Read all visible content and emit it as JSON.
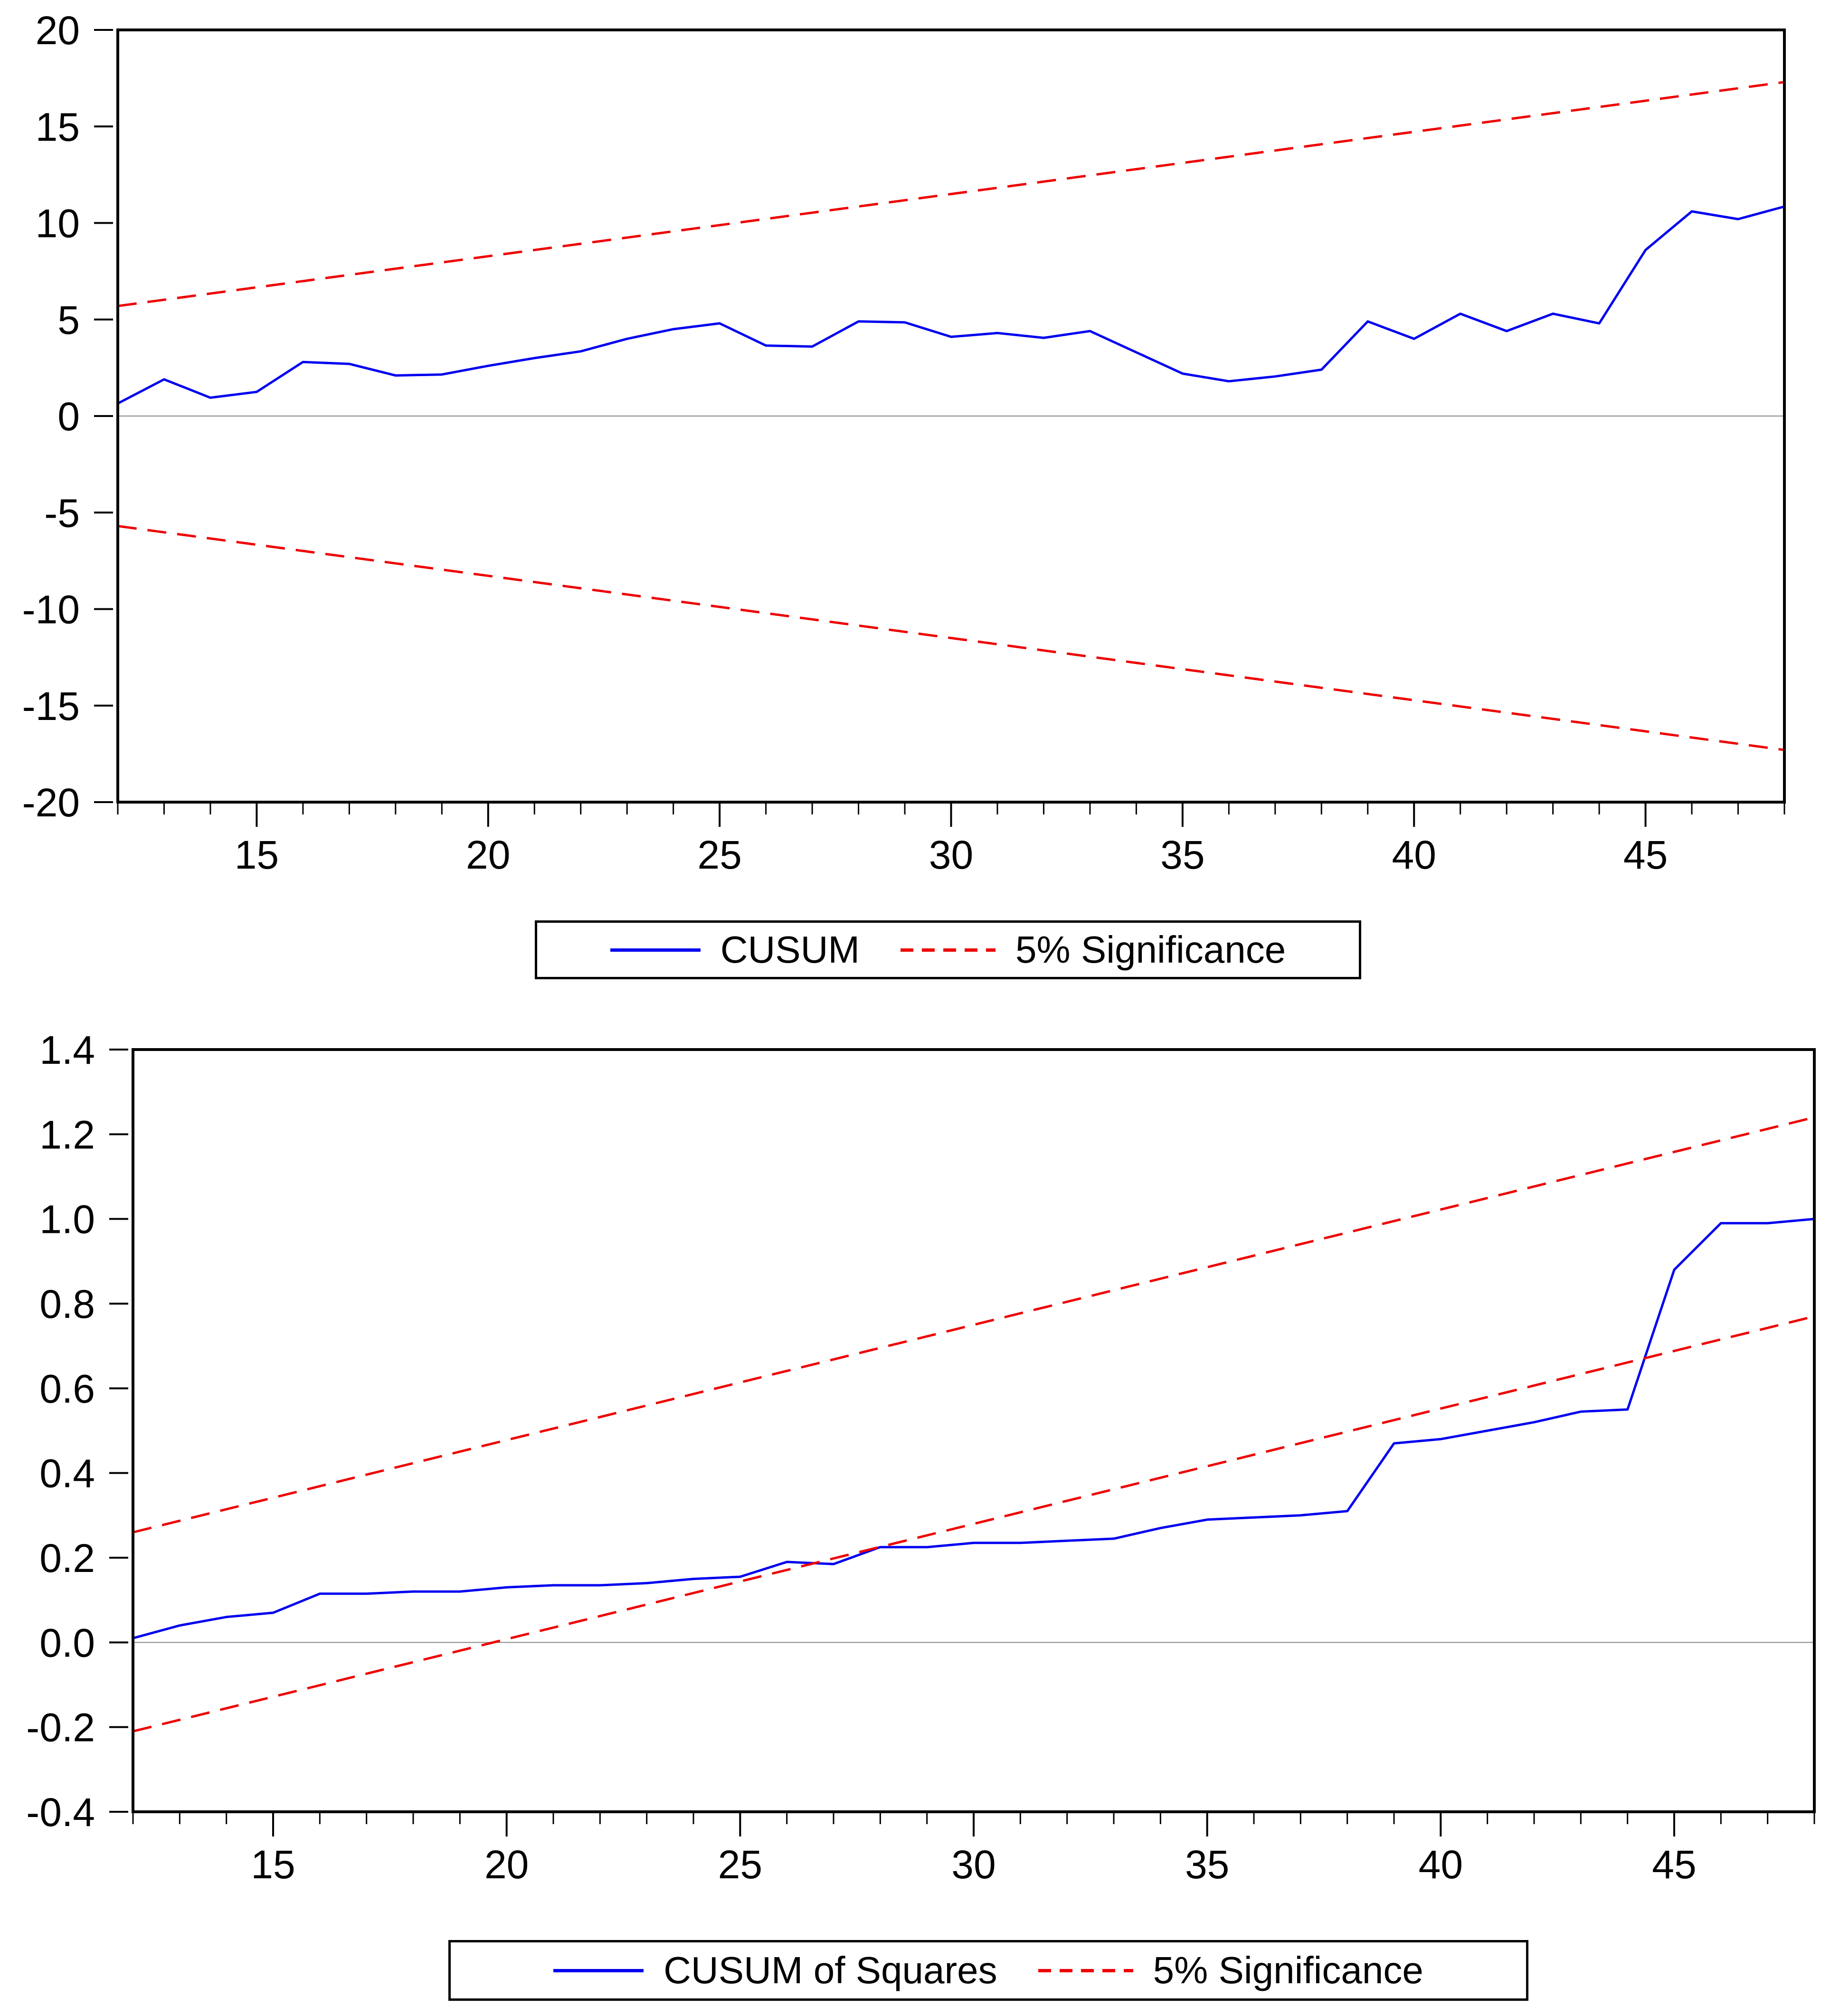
{
  "page": {
    "background": "#ffffff"
  },
  "colors": {
    "series_line": "#0000f0",
    "significance_band": "#ee0000",
    "axis": "#000000",
    "zero_line": "#888888"
  },
  "chart_data": [
    {
      "type": "line",
      "title": "",
      "xlabel": "",
      "ylabel": "",
      "x_range": [
        12,
        48
      ],
      "y_range": [
        -20,
        20
      ],
      "grid": false,
      "zero_line": 0,
      "legend_position": "bottom-center",
      "x_ticks_major": [
        15,
        20,
        25,
        30,
        35,
        40,
        45
      ],
      "x_tick_labels": [
        "15",
        "20",
        "25",
        "30",
        "35",
        "40",
        "45"
      ],
      "y_ticks": [
        20,
        15,
        10,
        5,
        0,
        -5,
        -10,
        -15,
        -20
      ],
      "y_tick_labels": [
        "20",
        "15",
        "10",
        "5",
        "0",
        "-5",
        "-10",
        "-15",
        "-20"
      ],
      "legend": [
        {
          "label": "CUSUM",
          "color": "#0000f0",
          "style": "solid"
        },
        {
          "label": "5% Significance",
          "color": "#ee0000",
          "style": "dashed"
        }
      ],
      "series": [
        {
          "name": "CUSUM",
          "color": "#0000f0",
          "dashed": false,
          "x": [
            12,
            13,
            14,
            15,
            16,
            17,
            18,
            19,
            20,
            21,
            22,
            23,
            24,
            25,
            26,
            27,
            28,
            29,
            30,
            31,
            32,
            33,
            34,
            35,
            36,
            37,
            38,
            39,
            40,
            41,
            42,
            43,
            44,
            45,
            46,
            47,
            48
          ],
          "y": [
            0.65,
            1.9,
            0.95,
            1.25,
            2.8,
            2.7,
            2.1,
            2.15,
            2.6,
            3.0,
            3.35,
            4.0,
            4.5,
            4.8,
            3.65,
            3.6,
            4.9,
            4.85,
            4.1,
            4.3,
            4.05,
            4.4,
            3.3,
            2.2,
            1.8,
            2.05,
            2.4,
            4.9,
            4.0,
            5.3,
            4.4,
            5.3,
            4.8,
            8.6,
            10.6,
            10.2,
            10.85
          ]
        },
        {
          "name": "5% Significance upper",
          "color": "#ee0000",
          "dashed": true,
          "x": [
            12,
            48
          ],
          "y": [
            5.7,
            17.3
          ]
        },
        {
          "name": "5% Significance lower",
          "color": "#ee0000",
          "dashed": true,
          "x": [
            12,
            48
          ],
          "y": [
            -5.7,
            -17.3
          ]
        }
      ]
    },
    {
      "type": "line",
      "title": "",
      "xlabel": "",
      "ylabel": "",
      "x_range": [
        12,
        48
      ],
      "y_range": [
        -0.4,
        1.4
      ],
      "grid": false,
      "zero_line": 0,
      "legend_position": "bottom-center",
      "x_ticks_major": [
        15,
        20,
        25,
        30,
        35,
        40,
        45
      ],
      "x_tick_labels": [
        "15",
        "20",
        "25",
        "30",
        "35",
        "40",
        "45"
      ],
      "y_ticks": [
        1.4,
        1.2,
        1.0,
        0.8,
        0.6,
        0.4,
        0.2,
        0.0,
        -0.2,
        -0.4
      ],
      "y_tick_labels": [
        "1.4",
        "1.2",
        "1.0",
        "0.8",
        "0.6",
        "0.4",
        "0.2",
        "0.0",
        "-0.2",
        "-0.4"
      ],
      "legend": [
        {
          "label": "CUSUM of Squares",
          "color": "#0000f0",
          "style": "solid"
        },
        {
          "label": "5% Significance",
          "color": "#ee0000",
          "style": "dashed"
        }
      ],
      "series": [
        {
          "name": "CUSUM of Squares",
          "color": "#0000f0",
          "dashed": false,
          "x": [
            12,
            13,
            14,
            15,
            16,
            17,
            18,
            19,
            20,
            21,
            22,
            23,
            24,
            25,
            26,
            27,
            28,
            29,
            30,
            31,
            32,
            33,
            34,
            35,
            36,
            37,
            38,
            39,
            40,
            41,
            42,
            43,
            44,
            45,
            46,
            47,
            48
          ],
          "y": [
            0.01,
            0.04,
            0.06,
            0.07,
            0.115,
            0.115,
            0.12,
            0.12,
            0.13,
            0.135,
            0.135,
            0.14,
            0.15,
            0.155,
            0.19,
            0.185,
            0.225,
            0.225,
            0.235,
            0.235,
            0.24,
            0.245,
            0.27,
            0.29,
            0.295,
            0.3,
            0.31,
            0.47,
            0.48,
            0.5,
            0.52,
            0.545,
            0.55,
            0.88,
            0.99,
            0.99,
            1.0
          ]
        },
        {
          "name": "5% Significance upper",
          "color": "#ee0000",
          "dashed": true,
          "x": [
            12,
            48
          ],
          "y": [
            0.26,
            1.24
          ]
        },
        {
          "name": "5% Significance lower",
          "color": "#ee0000",
          "dashed": true,
          "x": [
            12,
            48
          ],
          "y": [
            -0.21,
            0.77
          ]
        }
      ]
    }
  ]
}
